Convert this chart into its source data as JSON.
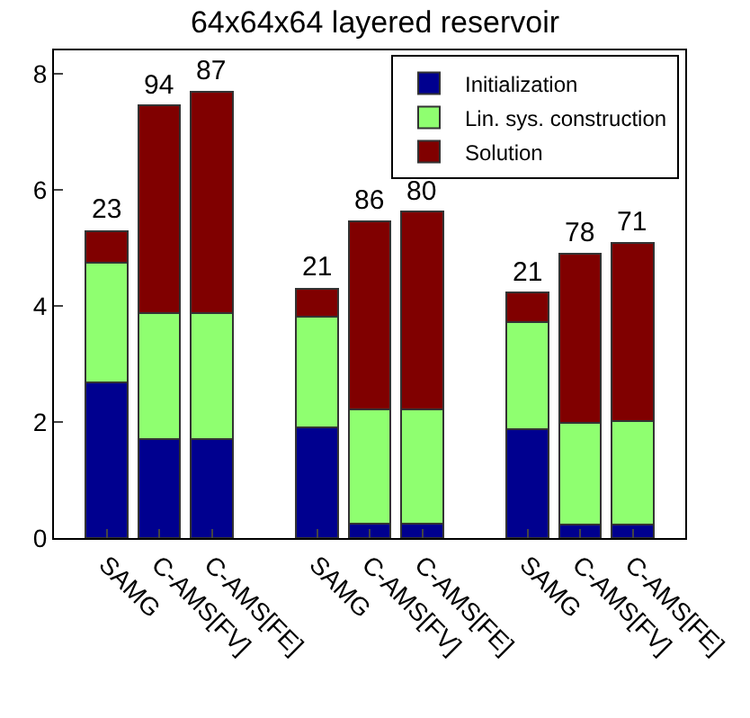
{
  "chart_data": {
    "type": "bar",
    "title": "64x64x64 layered reservoir",
    "stacked": true,
    "categories": [
      "SAMG",
      "C-AMS[FV]",
      "C-AMS[FE]",
      null,
      "SAMG",
      "C-AMS[FV]",
      "C-AMS[FE]",
      null,
      "SAMG",
      "C-AMS[FV]",
      "C-AMS[FE]"
    ],
    "series": [
      {
        "name": "Initialization",
        "color": "#00008f",
        "values": [
          2.68,
          1.71,
          1.71,
          null,
          1.91,
          0.25,
          0.25,
          null,
          1.88,
          0.23,
          0.23
        ]
      },
      {
        "name": "Lin. sys. construction",
        "color": "#8fff70",
        "values": [
          2.06,
          2.17,
          2.17,
          null,
          1.91,
          1.97,
          1.97,
          null,
          1.84,
          1.75,
          1.79
        ]
      },
      {
        "name": "Solution",
        "color": "#800000",
        "values": [
          0.55,
          3.57,
          3.8,
          null,
          0.48,
          3.24,
          3.4,
          null,
          0.51,
          2.91,
          3.07
        ]
      }
    ],
    "annotations": [
      "23",
      "94",
      "87",
      "21",
      "86",
      "80",
      "21",
      "78",
      "71"
    ],
    "grid": false,
    "ylim": [
      0,
      8.4
    ],
    "yticks": [
      0,
      2,
      4,
      6,
      8
    ],
    "legend": "top right"
  }
}
